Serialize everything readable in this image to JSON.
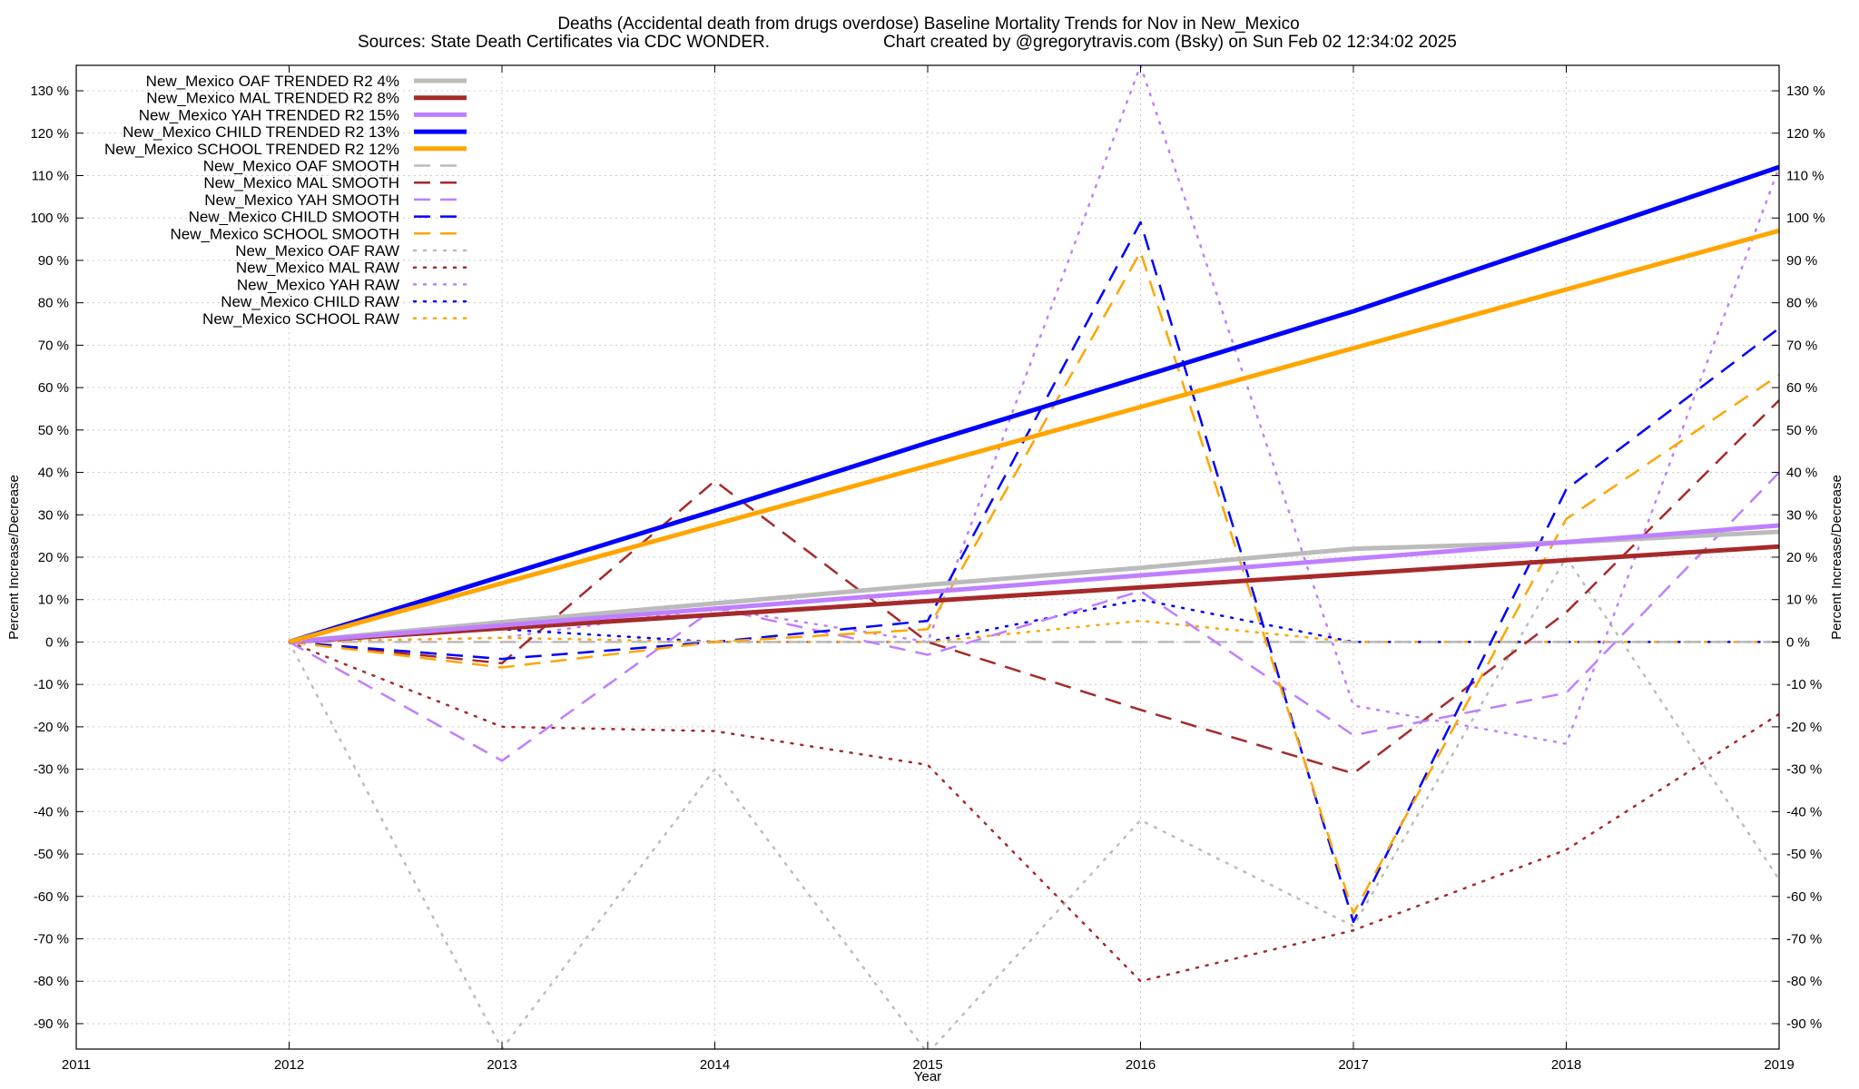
{
  "chart_data": {
    "type": "line",
    "title": "Deaths (Accidental death from drugs overdose)  Baseline Mortality Trends for Nov in New_Mexico",
    "subtitle_left": "Sources: State Death Certificates via CDC WONDER.",
    "subtitle_right": "Chart created by @gregorytravis.com (Bsky) on Sun Feb 02 12:34:02 2025",
    "xlabel": "Year",
    "ylabel": "Percent Increase/Decrease",
    "ylabel_right": "Percent Increase/Decrease",
    "xlim": [
      2011,
      2019
    ],
    "ylim": [
      -96,
      136
    ],
    "x_ticks": [
      2011,
      2012,
      2013,
      2014,
      2015,
      2016,
      2017,
      2018,
      2019
    ],
    "y_ticks": [
      130,
      120,
      110,
      100,
      90,
      80,
      70,
      60,
      50,
      40,
      30,
      20,
      10,
      0,
      -10,
      -20,
      -30,
      -40,
      -50,
      -60,
      -70,
      -80,
      -90
    ],
    "y_tick_suffix": " %",
    "grid": true,
    "legend_position": "top-left",
    "series": [
      {
        "name": "New_Mexico OAF TRENDED R2  4%",
        "color": "#bbbbbb",
        "style": "solid",
        "width": 5,
        "x": [
          2012,
          2013,
          2014,
          2015,
          2016,
          2017,
          2018,
          2019
        ],
        "values": [
          0,
          4.7,
          9.1,
          13.5,
          17.5,
          22,
          23.5,
          26
        ]
      },
      {
        "name": "New_Mexico MAL TRENDED R2  8%",
        "color": "#a52a2a",
        "style": "solid",
        "width": 5,
        "x": [
          2012,
          2019
        ],
        "values": [
          0,
          22.5
        ]
      },
      {
        "name": "New_Mexico YAH TRENDED R2  15%",
        "color": "#bf7fff",
        "style": "solid",
        "width": 5,
        "x": [
          2012,
          2019
        ],
        "values": [
          0,
          27.5
        ]
      },
      {
        "name": "New_Mexico CHILD TRENDED R2  13%",
        "color": "#0000ff",
        "style": "solid",
        "width": 5,
        "x": [
          2012,
          2013,
          2014,
          2015,
          2016,
          2017,
          2018,
          2019
        ],
        "values": [
          0,
          15.5,
          31,
          47,
          62.5,
          78,
          95,
          112
        ]
      },
      {
        "name": "New_Mexico SCHOOL TRENDED R2  12%",
        "color": "#ffa500",
        "style": "solid",
        "width": 5,
        "x": [
          2012,
          2019
        ],
        "values": [
          0,
          97
        ]
      },
      {
        "name": "New_Mexico OAF SMOOTH",
        "color": "#bbbbbb",
        "style": "dashed",
        "width": 2.5,
        "x": [
          2012,
          2013,
          2014,
          2015,
          2016,
          2017,
          2018,
          2019
        ],
        "values": [
          0,
          0,
          0,
          0,
          0,
          0,
          0,
          0
        ]
      },
      {
        "name": "New_Mexico MAL SMOOTH",
        "color": "#a52a2a",
        "style": "dashed",
        "width": 2.5,
        "x": [
          2012,
          2013,
          2014,
          2015,
          2016,
          2017,
          2018,
          2019
        ],
        "values": [
          0,
          -5,
          38,
          0,
          -16,
          -31,
          7,
          57
        ]
      },
      {
        "name": "New_Mexico YAH SMOOTH",
        "color": "#bf7fff",
        "style": "dashed",
        "width": 2.5,
        "x": [
          2012,
          2013,
          2014,
          2015,
          2016,
          2017,
          2018,
          2019
        ],
        "values": [
          0,
          -28,
          8,
          -3,
          12,
          -22,
          -12,
          40
        ]
      },
      {
        "name": "New_Mexico CHILD SMOOTH",
        "color": "#0000ff",
        "style": "dashed",
        "width": 2.5,
        "x": [
          2012,
          2013,
          2014,
          2015,
          2016,
          2017,
          2018,
          2019
        ],
        "values": [
          0,
          -4,
          0,
          5,
          99,
          -66,
          36,
          74
        ]
      },
      {
        "name": "New_Mexico SCHOOL SMOOTH",
        "color": "#ffa500",
        "style": "dashed",
        "width": 2.5,
        "x": [
          2012,
          2013,
          2014,
          2015,
          2016,
          2017,
          2018,
          2019
        ],
        "values": [
          0,
          -6,
          0,
          3,
          92,
          -64,
          29,
          63
        ]
      },
      {
        "name": "New_Mexico OAF RAW",
        "color": "#bbbbbb",
        "style": "dotted",
        "width": 2.5,
        "x": [
          2012,
          2013,
          2014,
          2015,
          2016,
          2017,
          2018,
          2019
        ],
        "values": [
          0,
          -96,
          -30,
          -97,
          -42,
          -67,
          20,
          -56
        ]
      },
      {
        "name": "New_Mexico MAL RAW",
        "color": "#a52a2a",
        "style": "dotted",
        "width": 2.5,
        "x": [
          2012,
          2013,
          2014,
          2015,
          2016,
          2017,
          2018,
          2019
        ],
        "values": [
          0,
          -20,
          -21,
          -29,
          -80,
          -68,
          -49,
          -17
        ]
      },
      {
        "name": "New_Mexico YAH RAW",
        "color": "#bf7fff",
        "style": "dotted",
        "width": 2.5,
        "x": [
          2012,
          2013,
          2014,
          2015,
          2016,
          2017,
          2018,
          2019
        ],
        "values": [
          0,
          1,
          8,
          0,
          136,
          -15,
          -24,
          112
        ]
      },
      {
        "name": "New_Mexico CHILD RAW",
        "color": "#0000ff",
        "style": "dotted",
        "width": 2.5,
        "x": [
          2012,
          2013,
          2014,
          2015,
          2016,
          2017,
          2018,
          2019
        ],
        "values": [
          0,
          3,
          0,
          0,
          10,
          0,
          0,
          0
        ]
      },
      {
        "name": "New_Mexico SCHOOL RAW",
        "color": "#ffa500",
        "style": "dotted",
        "width": 2.5,
        "x": [
          2012,
          2013,
          2014,
          2015,
          2016,
          2017,
          2018,
          2019
        ],
        "values": [
          0,
          1,
          0,
          0,
          5,
          0,
          0,
          0
        ]
      }
    ]
  }
}
